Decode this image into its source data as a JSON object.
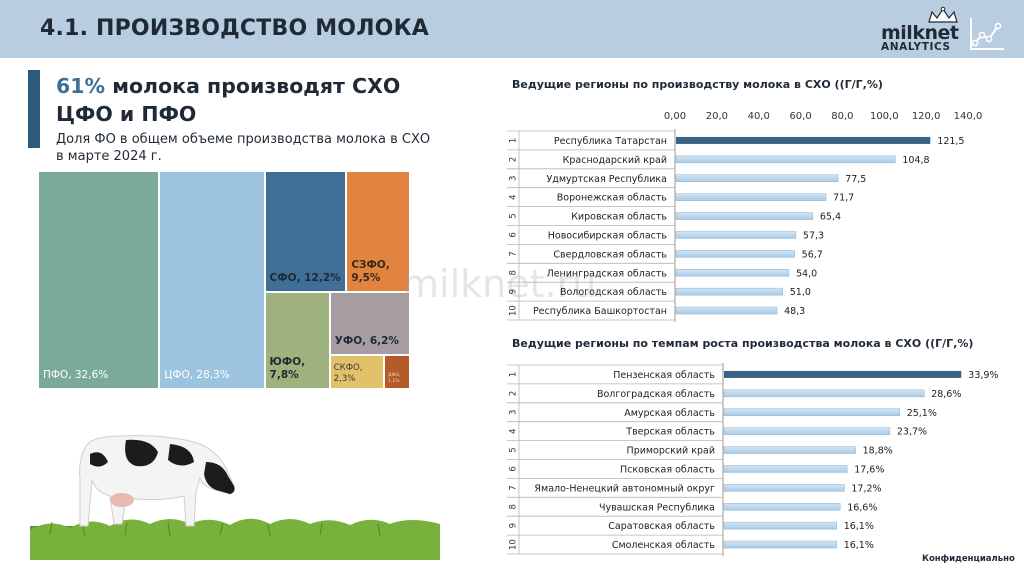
{
  "header": {
    "title": "4.1. ПРОИЗВОДСТВО МОЛОКА"
  },
  "logo": {
    "word": "milknet",
    "sub": "ANALYTICS"
  },
  "headline": {
    "pct": "61%",
    "rest": " молока производят СХО ЦФО и ПФО"
  },
  "subtext": "Доля ФО в общем объеме производства молока в СХО в марте 2024 г.",
  "watermark": "milknet.ru",
  "footer": "Конфиденциально",
  "colors": {
    "accent": "#2d5a7a",
    "topbar": "#b9cde0",
    "bar_highlight": "#3a6485",
    "bar_normal": "#a9cbe6"
  },
  "chart_data": [
    {
      "type": "treemap",
      "title": "",
      "items": [
        {
          "label": "ПФО, 32,6%",
          "value": 32.6,
          "color": "#7bab98"
        },
        {
          "label": "ЦФО, 28,3%",
          "value": 28.3,
          "color": "#9cc3e0"
        },
        {
          "label": "СФО, 12,2%",
          "value": 12.2,
          "color": "#3f6e96"
        },
        {
          "label": "СЗФО, 9,5%",
          "value": 9.5,
          "color": "#e2833f"
        },
        {
          "label": "ЮФО, 7,8%",
          "value": 7.8,
          "color": "#9fb27e"
        },
        {
          "label": "УФО, 6,2%",
          "value": 6.2,
          "color": "#a79da0"
        },
        {
          "label": "СКФО, 2,3%",
          "value": 2.3,
          "color": "#e2c16b"
        },
        {
          "label": "ДФО, 1,1%",
          "value": 1.1,
          "color": "#b65a2a"
        }
      ]
    },
    {
      "type": "bar",
      "orientation": "horizontal",
      "title": "Ведущие регионы по производству молока в СХО ((Г/Г,%)",
      "xlim": [
        0,
        140
      ],
      "ticks": [
        "0,00",
        "20,0",
        "40,0",
        "60,0",
        "80,0",
        "100,0",
        "120,0",
        "140,0"
      ],
      "ranks": [
        "1",
        "2",
        "3",
        "4",
        "5",
        "6",
        "7",
        "8",
        "9",
        "10"
      ],
      "categories": [
        "Республика Татарстан",
        "Краснодарский край",
        "Удмуртская Республика",
        "Воронежская область",
        "Кировская область",
        "Новосибирская область",
        "Свердловская область",
        "Ленинградская область",
        "Вологодская область",
        "Республика Башкортостан"
      ],
      "values": [
        121.5,
        104.8,
        77.5,
        71.7,
        65.4,
        57.3,
        56.7,
        54.0,
        51.0,
        48.3
      ],
      "value_labels": [
        "121,5",
        "104,8",
        "77,5",
        "71,7",
        "65,4",
        "57,3",
        "56,7",
        "54,0",
        "51,0",
        "48,3"
      ]
    },
    {
      "type": "bar",
      "orientation": "horizontal",
      "title": "Ведущие регионы по темпам роста производства молока в СХО ((Г/Г,%)",
      "xlim": [
        0,
        35
      ],
      "ranks": [
        "1",
        "2",
        "3",
        "4",
        "5",
        "6",
        "7",
        "8",
        "9",
        "10"
      ],
      "categories": [
        "Пензенская область",
        "Волгоградская область",
        "Амурская область",
        "Тверская область",
        "Приморский край",
        "Псковская область",
        "Ямало-Ненецкий автономный округ",
        "Чувашская Республика",
        "Саратовская область",
        "Смоленская область"
      ],
      "values": [
        33.9,
        28.6,
        25.1,
        23.7,
        18.8,
        17.6,
        17.2,
        16.6,
        16.1,
        16.1
      ],
      "value_labels": [
        "33,9%",
        "28,6%",
        "25,1%",
        "23,7%",
        "18,8%",
        "17,6%",
        "17,2%",
        "16,6%",
        "16,1%",
        "16,1%"
      ]
    }
  ]
}
